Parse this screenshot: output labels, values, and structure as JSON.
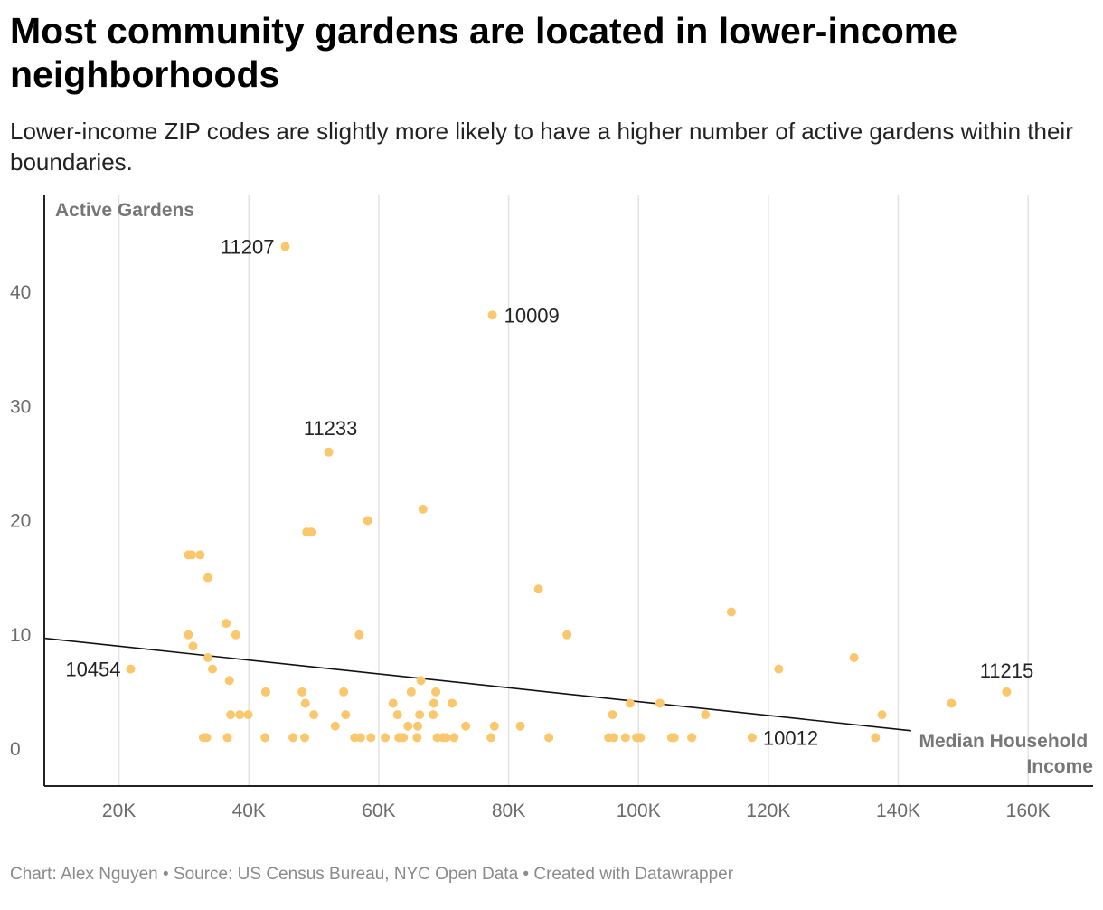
{
  "title": "Most community gardens are located in lower-income neighborhoods",
  "subtitle": "Lower-income ZIP codes are slightly more likely to have a higher number of active gardens within their boundaries.",
  "footer": "Chart: Alex Nguyen • Source: US Census Bureau, NYC Open Data • Created with Datawrapper",
  "colors": {
    "dot": "#fbc76d",
    "grid": "#e3e3e3",
    "axis": "#222222",
    "trend": "#111111"
  },
  "chart_data": {
    "type": "scatter",
    "title": "Most community gardens are located in lower-income neighborhoods",
    "xlabel": "Median Household Income",
    "ylabel": "Active Gardens",
    "xlim": [
      8500,
      170000
    ],
    "ylim": [
      -3,
      48
    ],
    "x_ticks": [
      20000,
      40000,
      60000,
      80000,
      100000,
      120000,
      140000,
      160000
    ],
    "x_tick_labels": [
      "20K",
      "40K",
      "60K",
      "80K",
      "100K",
      "120K",
      "140K",
      "160K"
    ],
    "y_ticks": [
      0,
      10,
      20,
      30,
      40
    ],
    "y_tick_labels": [
      "0",
      "10",
      "20",
      "30",
      "40"
    ],
    "trendline": {
      "x": [
        8500,
        142000
      ],
      "y": [
        9.7,
        1.6
      ]
    },
    "labeled_points": [
      {
        "zip": "11207",
        "x": 45600,
        "y": 44
      },
      {
        "zip": "10009",
        "x": 77500,
        "y": 38
      },
      {
        "zip": "11233",
        "x": 52300,
        "y": 26
      },
      {
        "zip": "10454",
        "x": 21800,
        "y": 7
      },
      {
        "zip": "11215",
        "x": 156700,
        "y": 5
      },
      {
        "zip": "10012",
        "x": 117500,
        "y": 1
      }
    ],
    "points": [
      [
        30700,
        17
      ],
      [
        31200,
        17
      ],
      [
        32500,
        17
      ],
      [
        33700,
        15
      ],
      [
        30700,
        10
      ],
      [
        31400,
        9
      ],
      [
        33700,
        8
      ],
      [
        34400,
        7
      ],
      [
        36500,
        11
      ],
      [
        38000,
        10
      ],
      [
        37000,
        6
      ],
      [
        37200,
        3
      ],
      [
        38600,
        3
      ],
      [
        39900,
        3
      ],
      [
        33000,
        1
      ],
      [
        33500,
        1
      ],
      [
        36700,
        1
      ],
      [
        42600,
        5
      ],
      [
        42500,
        1
      ],
      [
        46800,
        1
      ],
      [
        48200,
        5
      ],
      [
        48700,
        4
      ],
      [
        50000,
        3
      ],
      [
        48600,
        1
      ],
      [
        53300,
        2
      ],
      [
        54900,
        3
      ],
      [
        48900,
        19
      ],
      [
        49600,
        19
      ],
      [
        58300,
        20
      ],
      [
        57000,
        10
      ],
      [
        54600,
        5
      ],
      [
        56300,
        1
      ],
      [
        57200,
        1
      ],
      [
        58800,
        1
      ],
      [
        61000,
        1
      ],
      [
        62200,
        4
      ],
      [
        62900,
        3
      ],
      [
        63100,
        1
      ],
      [
        63800,
        1
      ],
      [
        64500,
        2
      ],
      [
        65000,
        5
      ],
      [
        66000,
        2
      ],
      [
        66300,
        3
      ],
      [
        65900,
        1
      ],
      [
        66500,
        6
      ],
      [
        66800,
        21
      ],
      [
        68500,
        4
      ],
      [
        68400,
        3
      ],
      [
        68800,
        5
      ],
      [
        69000,
        1
      ],
      [
        69900,
        1
      ],
      [
        70400,
        1
      ],
      [
        71300,
        4
      ],
      [
        71600,
        1
      ],
      [
        73400,
        2
      ],
      [
        77300,
        1
      ],
      [
        77800,
        2
      ],
      [
        81800,
        2
      ],
      [
        84600,
        14
      ],
      [
        86200,
        1
      ],
      [
        89000,
        10
      ],
      [
        95400,
        1
      ],
      [
        96200,
        1
      ],
      [
        96000,
        3
      ],
      [
        98000,
        1
      ],
      [
        98700,
        4
      ],
      [
        99700,
        1
      ],
      [
        100300,
        1
      ],
      [
        103300,
        4
      ],
      [
        105100,
        1
      ],
      [
        105500,
        1
      ],
      [
        108200,
        1
      ],
      [
        110300,
        3
      ],
      [
        114300,
        12
      ],
      [
        121600,
        7
      ],
      [
        133200,
        8
      ],
      [
        136500,
        1
      ],
      [
        137500,
        3
      ],
      [
        148200,
        4
      ]
    ]
  }
}
